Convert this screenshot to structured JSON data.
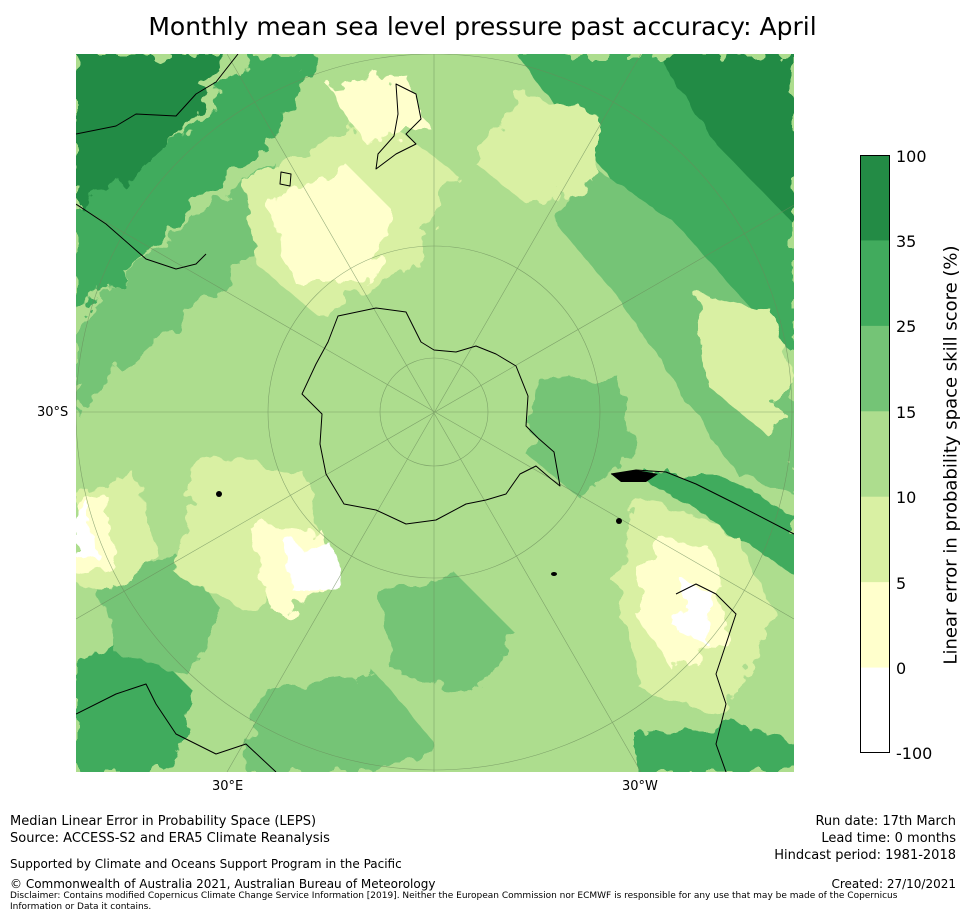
{
  "title": "Monthly mean sea level pressure past accuracy: April",
  "map": {
    "projection": "south polar stereographic",
    "lat_label_west": "30°S",
    "lon_labels": [
      "30°E",
      "30°W"
    ],
    "visible_landmasses": [
      "Antarctica",
      "Australia",
      "New Zealand",
      "South America",
      "Southern Africa"
    ]
  },
  "colorbar": {
    "label": "Linear error in probability space skill score (%)",
    "tick_labels": [
      "100",
      "35",
      "25",
      "15",
      "10",
      "5",
      "0",
      "-100"
    ],
    "bins": [
      {
        "range": "35 to 100",
        "color": "#238b45"
      },
      {
        "range": "25 to 35",
        "color": "#41ab5d"
      },
      {
        "range": "15 to 25",
        "color": "#74c476"
      },
      {
        "range": "10 to 15",
        "color": "#addd8e"
      },
      {
        "range": "5 to 10",
        "color": "#d9f0a3"
      },
      {
        "range": "0 to 5",
        "color": "#ffffcc"
      },
      {
        "range": "-100 to 0",
        "color": "#ffffff"
      }
    ]
  },
  "footer": {
    "line1": "Median Linear Error in Probability Space (LEPS)",
    "line2": "Source: ACCESS-S2 and ERA5 Climate Reanalysis",
    "supported": "Supported by Climate and Oceans Support Program in the Pacific",
    "copyright": "© Commonwealth of Australia 2021, Australian Bureau of Meteorology",
    "disclaimer": "Disclaimer: Contains modified Copernicus Climate Change Service Information [2019]. Neither the European Commission nor ECMWF is responsible for any use that may be made of the Copernicus Information or Data it contains.",
    "run_date": "Run date: 17th March",
    "lead_time": "Lead time: 0 months",
    "hindcast": "Hindcast period: 1981-2018",
    "created": "Created: 27/10/2021"
  }
}
